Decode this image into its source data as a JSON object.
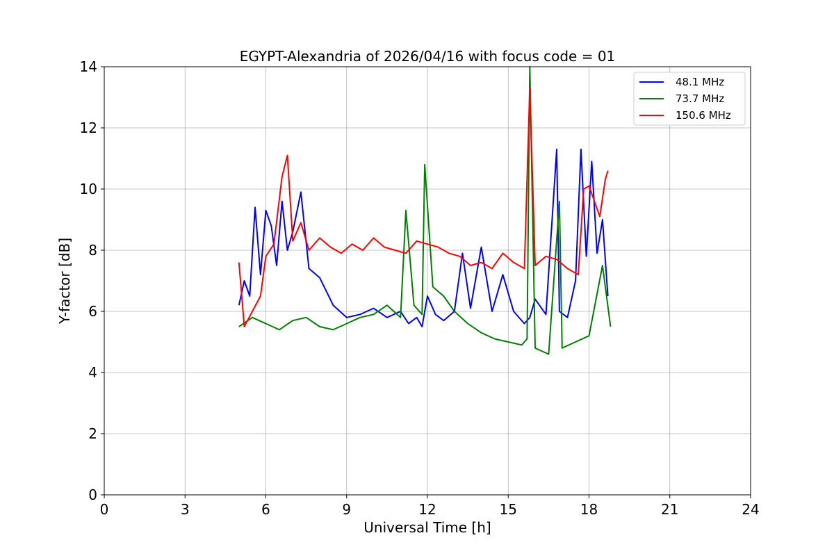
{
  "chart_data": {
    "type": "line",
    "title": "EGYPT-Alexandria of 2026/04/16 with focus code = 01",
    "xlabel": "Universal Time [h]",
    "ylabel": "Y-factor [dB]",
    "xlim": [
      0,
      24
    ],
    "ylim": [
      0,
      14
    ],
    "xticks": [
      0,
      3,
      6,
      9,
      12,
      15,
      18,
      21,
      24
    ],
    "yticks": [
      0,
      2,
      4,
      6,
      8,
      10,
      12,
      14
    ],
    "xtick_labels": [
      "0",
      "3",
      "6",
      "9",
      "12",
      "15",
      "18",
      "21",
      "24"
    ],
    "ytick_labels": [
      "0",
      "2",
      "4",
      "6",
      "8",
      "10",
      "12",
      "14"
    ],
    "grid": true,
    "legend_position": "top-right",
    "series": [
      {
        "name": " 48.1 MHz",
        "color": "#0000ff",
        "x": [
          5.0,
          5.2,
          5.4,
          5.6,
          5.8,
          6.0,
          6.2,
          6.4,
          6.6,
          6.8,
          7.0,
          7.3,
          7.6,
          8.0,
          8.5,
          9.0,
          9.5,
          10.0,
          10.5,
          11.0,
          11.3,
          11.6,
          11.8,
          12.0,
          12.3,
          12.6,
          13.0,
          13.3,
          13.6,
          14.0,
          14.4,
          14.8,
          15.2,
          15.6,
          15.8,
          16.0,
          16.4,
          16.8,
          16.9,
          17.2,
          17.5,
          17.7,
          17.9,
          18.1,
          18.3,
          18.5,
          18.7
        ],
        "y": [
          6.2,
          7.0,
          6.5,
          9.4,
          7.2,
          9.3,
          8.8,
          7.5,
          9.6,
          8.0,
          8.6,
          9.9,
          7.4,
          7.1,
          6.2,
          5.8,
          5.9,
          6.1,
          5.8,
          6.0,
          5.6,
          5.8,
          5.5,
          6.5,
          5.9,
          5.7,
          6.0,
          7.9,
          6.1,
          8.1,
          6.0,
          7.2,
          6.0,
          5.6,
          5.8,
          6.4,
          5.9,
          11.3,
          6.0,
          5.8,
          7.0,
          11.3,
          7.8,
          10.9,
          7.9,
          9.0,
          6.5
        ]
      },
      {
        "name": " 73.7 MHz",
        "color": "#008000",
        "x": [
          5.0,
          5.5,
          6.0,
          6.5,
          7.0,
          7.5,
          8.0,
          8.5,
          9.0,
          9.5,
          10.0,
          10.5,
          11.0,
          11.2,
          11.5,
          11.8,
          11.9,
          12.2,
          12.6,
          13.0,
          13.5,
          14.0,
          14.5,
          15.0,
          15.5,
          15.7,
          15.8,
          16.0,
          16.5,
          16.9,
          17.0,
          17.5,
          18.0,
          18.5,
          18.8
        ],
        "y": [
          5.5,
          5.8,
          5.6,
          5.4,
          5.7,
          5.8,
          5.5,
          5.4,
          5.6,
          5.8,
          5.9,
          6.2,
          5.8,
          9.3,
          6.2,
          5.9,
          10.8,
          6.8,
          6.5,
          6.0,
          5.6,
          5.3,
          5.1,
          5.0,
          4.9,
          5.1,
          14.0,
          4.8,
          4.6,
          9.6,
          4.8,
          5.0,
          5.2,
          7.5,
          5.5
        ]
      },
      {
        "name": "150.6 MHz",
        "color": "#ff0000",
        "x": [
          5.0,
          5.2,
          5.5,
          5.8,
          6.0,
          6.3,
          6.6,
          6.8,
          7.0,
          7.3,
          7.6,
          8.0,
          8.4,
          8.8,
          9.2,
          9.6,
          10.0,
          10.4,
          10.8,
          11.2,
          11.6,
          12.0,
          12.4,
          12.8,
          13.2,
          13.6,
          14.0,
          14.4,
          14.8,
          15.2,
          15.6,
          15.8,
          16.0,
          16.4,
          16.8,
          17.2,
          17.6,
          17.8,
          18.0,
          18.2,
          18.4,
          18.6,
          18.7
        ],
        "y": [
          7.6,
          5.5,
          6.0,
          6.5,
          7.8,
          8.2,
          10.4,
          11.1,
          8.3,
          8.9,
          8.0,
          8.4,
          8.1,
          7.9,
          8.2,
          8.0,
          8.4,
          8.1,
          8.0,
          7.9,
          8.3,
          8.2,
          8.1,
          7.9,
          7.8,
          7.5,
          7.6,
          7.4,
          7.9,
          7.6,
          7.4,
          13.3,
          7.5,
          7.8,
          7.7,
          7.4,
          7.2,
          10.0,
          10.1,
          9.6,
          9.1,
          10.3,
          10.6
        ]
      }
    ]
  }
}
